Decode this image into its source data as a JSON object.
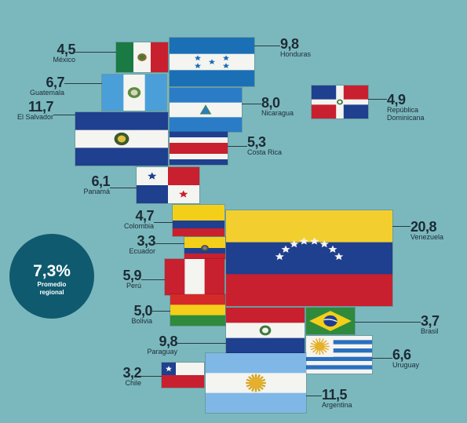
{
  "chart_data": {
    "type": "bar",
    "categories": [
      "México",
      "Honduras",
      "Guatemala",
      "El Salvador",
      "Nicaragua",
      "República Dominicana",
      "Costa Rica",
      "Panamá",
      "Colombia",
      "Venezuela",
      "Ecuador",
      "Perú",
      "Bolivia",
      "Brasil",
      "Paraguay",
      "Uruguay",
      "Chile",
      "Argentina"
    ],
    "values": [
      4.5,
      9.8,
      6.7,
      11.7,
      8.0,
      4.9,
      5.3,
      6.1,
      4.7,
      20.8,
      3.3,
      5.9,
      5.0,
      3.7,
      9.8,
      6.6,
      3.2,
      11.5
    ],
    "value_labels": [
      "4,5",
      "9,8",
      "6,7",
      "11,7",
      "8,0",
      "4,9",
      "5,3",
      "6,1",
      "4,7",
      "20,8",
      "3,3",
      "5,9",
      "5,0",
      "3,7",
      "9,8",
      "6,6",
      "3,2",
      "11,5"
    ],
    "display_names": [
      "México",
      "Honduras",
      "Guatemala",
      "El Salvador",
      "Nicaragua",
      "República\nDominicana",
      "Costa Rica",
      "Panamá",
      "Colombia",
      "Venezuela",
      "Ecuador",
      "Perú",
      "Bolivia",
      "Brasil",
      "Paraguay",
      "Uruguay",
      "Chile",
      "Argentina"
    ],
    "regional_average": {
      "value": "7,3%",
      "label": "Promedio regional"
    }
  },
  "colors": {
    "background": "#7bb8bd",
    "average_circle": "#0f5a6f",
    "text": "#1c2b36"
  }
}
